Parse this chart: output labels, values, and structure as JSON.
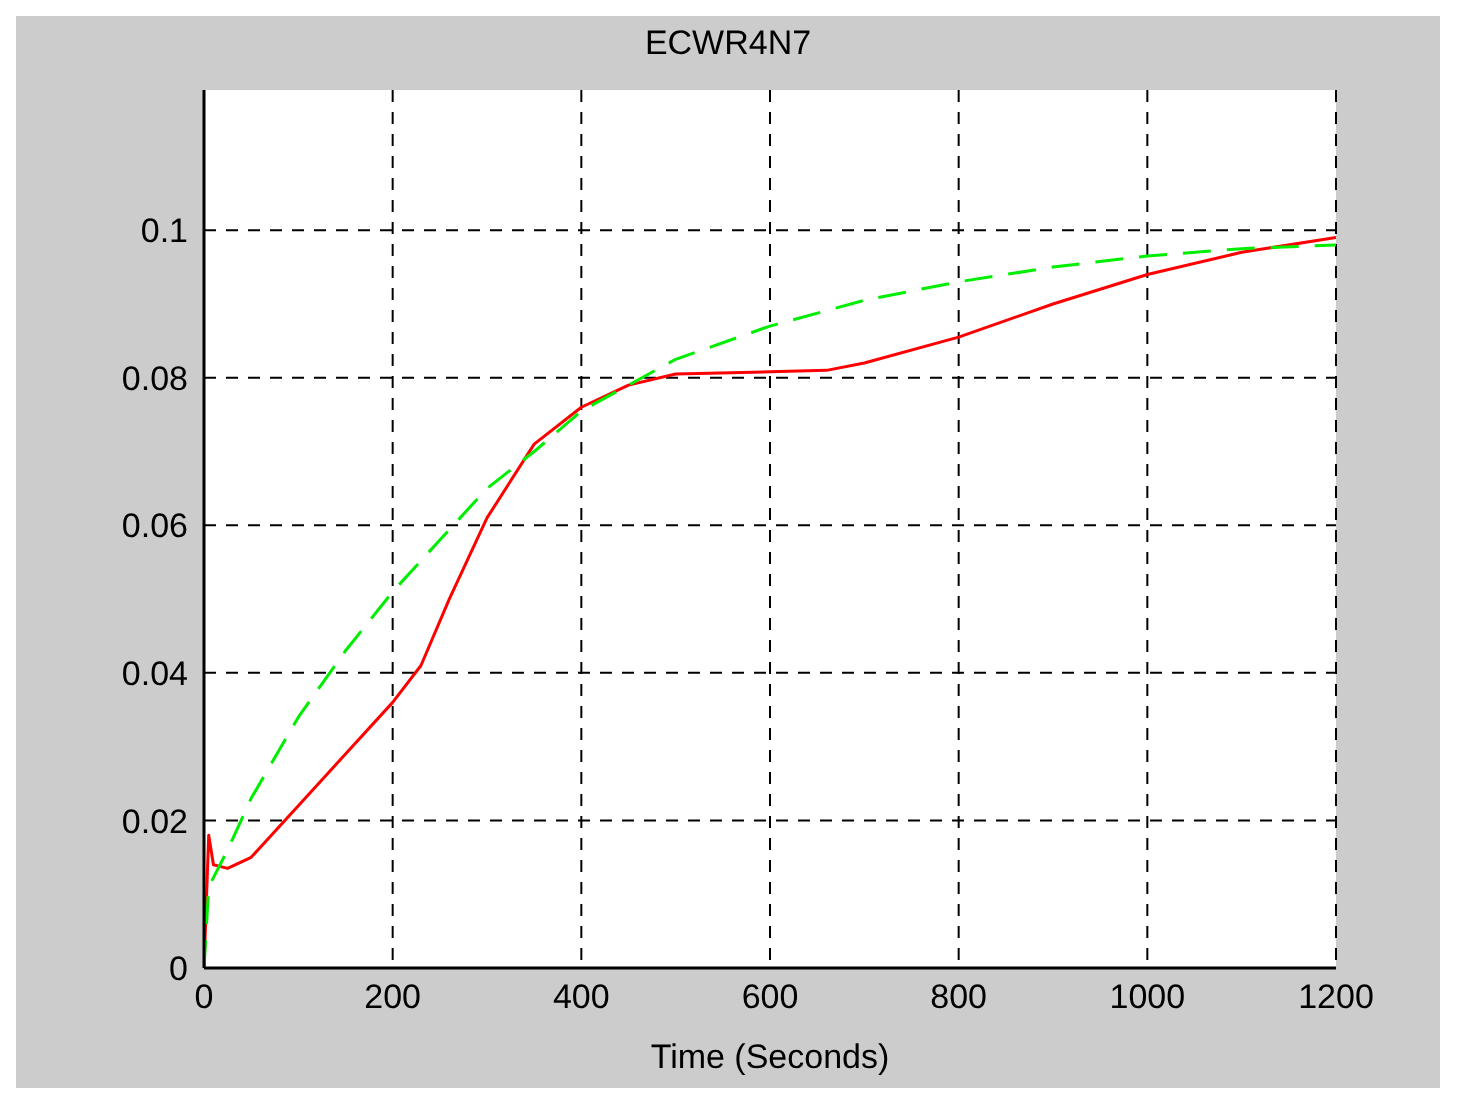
{
  "chart_data": {
    "type": "line",
    "title": "ECWR4N7",
    "xlabel": "Time (Seconds)",
    "xlim": [
      0,
      1200
    ],
    "xticks": [
      0,
      200,
      400,
      600,
      800,
      1000,
      1200
    ],
    "ylim": [
      0,
      0.119
    ],
    "yticks": [
      0,
      0.02,
      0.04,
      0.06,
      0.08,
      0.1
    ],
    "grid": true,
    "series": [
      {
        "color": "#ff0000",
        "line_style": "solid",
        "x": [
          0,
          5,
          10,
          25,
          50,
          100,
          150,
          200,
          230,
          260,
          300,
          350,
          400,
          450,
          500,
          600,
          660,
          700,
          800,
          900,
          1000,
          1100,
          1200
        ],
        "values": [
          0,
          0.018,
          0.014,
          0.0135,
          0.015,
          0.022,
          0.029,
          0.036,
          0.041,
          0.05,
          0.061,
          0.071,
          0.076,
          0.079,
          0.0805,
          0.0808,
          0.081,
          0.082,
          0.0855,
          0.09,
          0.094,
          0.097,
          0.099
        ]
      },
      {
        "color": "#00ee00",
        "line_style": "dashed",
        "x": [
          0,
          5,
          25,
          50,
          100,
          150,
          200,
          250,
          300,
          350,
          400,
          450,
          500,
          600,
          700,
          800,
          900,
          1000,
          1100,
          1200
        ],
        "values": [
          0,
          0.011,
          0.016,
          0.023,
          0.034,
          0.043,
          0.051,
          0.058,
          0.065,
          0.07,
          0.0755,
          0.079,
          0.0825,
          0.087,
          0.0905,
          0.093,
          0.095,
          0.0965,
          0.0975,
          0.098
        ]
      }
    ]
  }
}
